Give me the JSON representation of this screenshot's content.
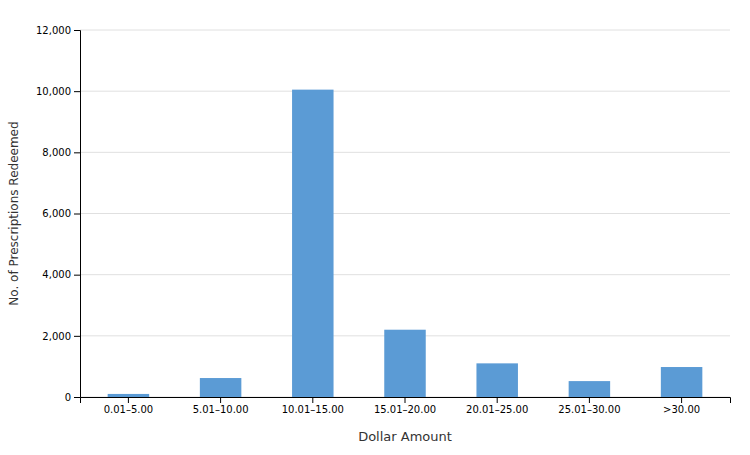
{
  "chart_data": {
    "type": "bar",
    "categories": [
      "0.01–5.00",
      "5.01–10.00",
      "10.01–15.00",
      "15.01–20.00",
      "20.01–25.00",
      "25.01–30.00",
      ">30.00"
    ],
    "values": [
      100,
      620,
      10050,
      2200,
      1100,
      520,
      980
    ],
    "color": "#5b9bd5",
    "xlabel": "Dollar Amount",
    "ylabel": "No. of Prescriptions Redeemed",
    "ylim": [
      0,
      12000
    ],
    "yticks": [
      0,
      {
        "value": 2000,
        "label": "2,000"
      },
      {
        "value": 4000,
        "label": "4,000"
      },
      {
        "value": 6000,
        "label": "6,000"
      },
      {
        "value": 8000,
        "label": "8,000"
      },
      {
        "value": 10000,
        "label": "10,000"
      },
      {
        "value": 12000,
        "label": "12,000"
      }
    ],
    "grid": true
  }
}
